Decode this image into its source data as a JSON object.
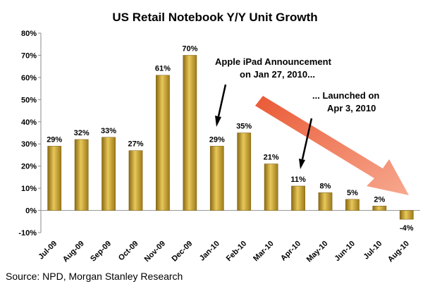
{
  "chart_data": {
    "type": "bar",
    "title": "US Retail Notebook Y/Y Unit Growth",
    "categories": [
      "Jul-09",
      "Aug-09",
      "Sep-09",
      "Oct-09",
      "Nov-09",
      "Dec-09",
      "Jan-10",
      "Feb-10",
      "Mar-10",
      "Apr-10",
      "May-10",
      "Jun-10",
      "Jul-10",
      "Aug-10"
    ],
    "values": [
      29,
      32,
      33,
      27,
      61,
      70,
      29,
      35,
      21,
      11,
      8,
      5,
      2,
      -4
    ],
    "value_labels": [
      "29%",
      "32%",
      "33%",
      "27%",
      "61%",
      "70%",
      "29%",
      "35%",
      "21%",
      "11%",
      "8%",
      "5%",
      "2%",
      "-4%"
    ],
    "ylim": [
      -10,
      80
    ],
    "yticks": [
      -10,
      0,
      10,
      20,
      30,
      40,
      50,
      60,
      70,
      80
    ],
    "ytick_labels": [
      "-10%",
      "0%",
      "10%",
      "20%",
      "30%",
      "40%",
      "50%",
      "60%",
      "70%",
      "80%"
    ],
    "xlabel": "",
    "ylabel": "",
    "bar_color": "#c9a227",
    "annotations": [
      {
        "lines": [
          "Apple iPad Announcement",
          "on Jan 27, 2010..."
        ],
        "points_to": "Jan-10"
      },
      {
        "lines": [
          "... Launched on",
          "Apr 3, 2010"
        ],
        "points_to": "Apr-10"
      }
    ],
    "trend_arrow_color": "#f0683e"
  },
  "source": "Source: NPD, Morgan Stanley Research"
}
